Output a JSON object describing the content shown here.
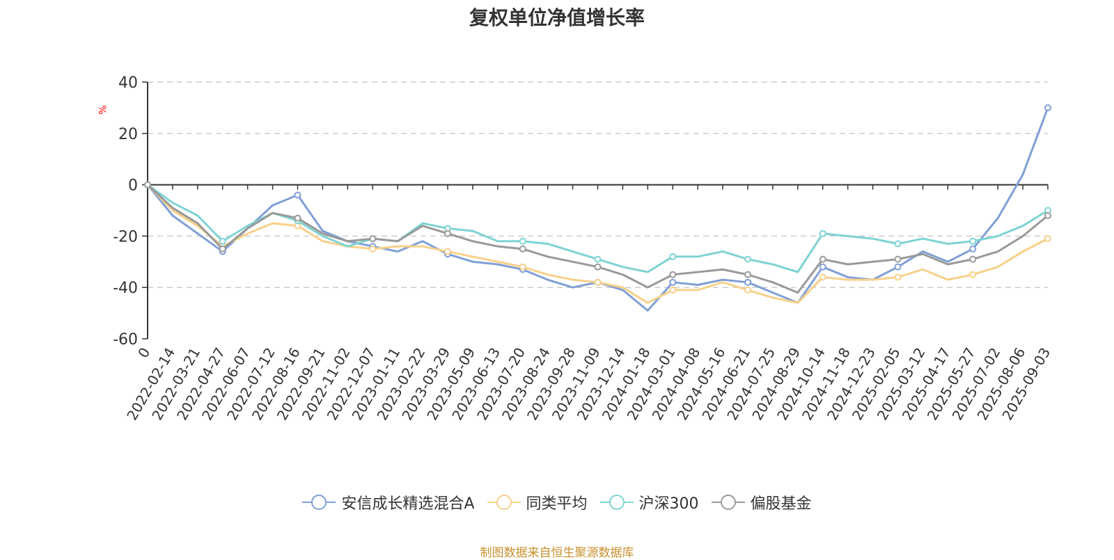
{
  "chart_data": {
    "type": "line",
    "title": "复权单位净值增长率",
    "ylabel": "%",
    "ylim": [
      -60,
      40
    ],
    "yticks": [
      40,
      20,
      0,
      -20,
      -40,
      -60
    ],
    "grid": true,
    "legend_position": "bottom",
    "x_ticks": [
      "0",
      "2022-02-14",
      "2022-03-21",
      "2022-04-27",
      "2022-06-07",
      "2022-07-12",
      "2022-08-16",
      "2022-09-21",
      "2022-11-02",
      "2022-12-07",
      "2023-01-11",
      "2023-02-22",
      "2023-03-29",
      "2023-05-09",
      "2023-06-13",
      "2023-07-20",
      "2023-08-24",
      "2023-09-28",
      "2023-11-09",
      "2023-12-14",
      "2024-01-18",
      "2024-03-01",
      "2024-04-08",
      "2024-05-16",
      "2024-06-21",
      "2024-07-25",
      "2024-08-29",
      "2024-10-14",
      "2024-11-18",
      "2024-12-23",
      "2025-02-05",
      "2025-03-12",
      "2025-04-17",
      "2025-05-27",
      "2025-07-02",
      "2025-08-06",
      "2025-09-03"
    ],
    "series": [
      {
        "name": "安信成长精选混合A",
        "color": "#7f9fd6",
        "values": [
          0,
          -12,
          -19,
          -26,
          -17,
          -8,
          -4,
          -18,
          -22,
          -24,
          -26,
          -22,
          -27,
          -30,
          -31,
          -33,
          -37,
          -40,
          -38,
          -41,
          -49,
          -38,
          -39,
          -37,
          -38,
          -42,
          -46,
          -32,
          -36,
          -37,
          -32,
          -26,
          -30,
          -25,
          -13,
          4,
          30
        ]
      },
      {
        "name": "同类平均",
        "color": "#f8d08a",
        "values": [
          0,
          -10,
          -16,
          -24,
          -19,
          -15,
          -16,
          -22,
          -24,
          -25,
          -24,
          -24,
          -26,
          -28,
          -30,
          -32,
          -35,
          -37,
          -38,
          -40,
          -46,
          -41,
          -41,
          -38,
          -41,
          -44,
          -46,
          -36,
          -37,
          -37,
          -36,
          -33,
          -37,
          -35,
          -32,
          -26,
          -21
        ]
      },
      {
        "name": "沪深300",
        "color": "#7ed3d3",
        "values": [
          0,
          -7,
          -12,
          -22,
          -16,
          -11,
          -14,
          -20,
          -24,
          -21,
          -22,
          -15,
          -17,
          -18,
          -22,
          -22,
          -23,
          -26,
          -29,
          -32,
          -34,
          -28,
          -28,
          -26,
          -29,
          -31,
          -34,
          -19,
          -20,
          -21,
          -23,
          -21,
          -23,
          -22,
          -20,
          -16,
          -10
        ]
      },
      {
        "name": "偏股基金",
        "color": "#999999",
        "values": [
          0,
          -9,
          -15,
          -25,
          -17,
          -11,
          -13,
          -19,
          -22,
          -21,
          -22,
          -16,
          -19,
          -22,
          -24,
          -25,
          -28,
          -30,
          -32,
          -35,
          -40,
          -35,
          -34,
          -33,
          -35,
          -38,
          -42,
          -29,
          -31,
          -30,
          -29,
          -27,
          -31,
          -29,
          -26,
          -20,
          -12
        ]
      }
    ]
  },
  "footer": {
    "source": "制图数据来自恒生聚源数据库"
  }
}
